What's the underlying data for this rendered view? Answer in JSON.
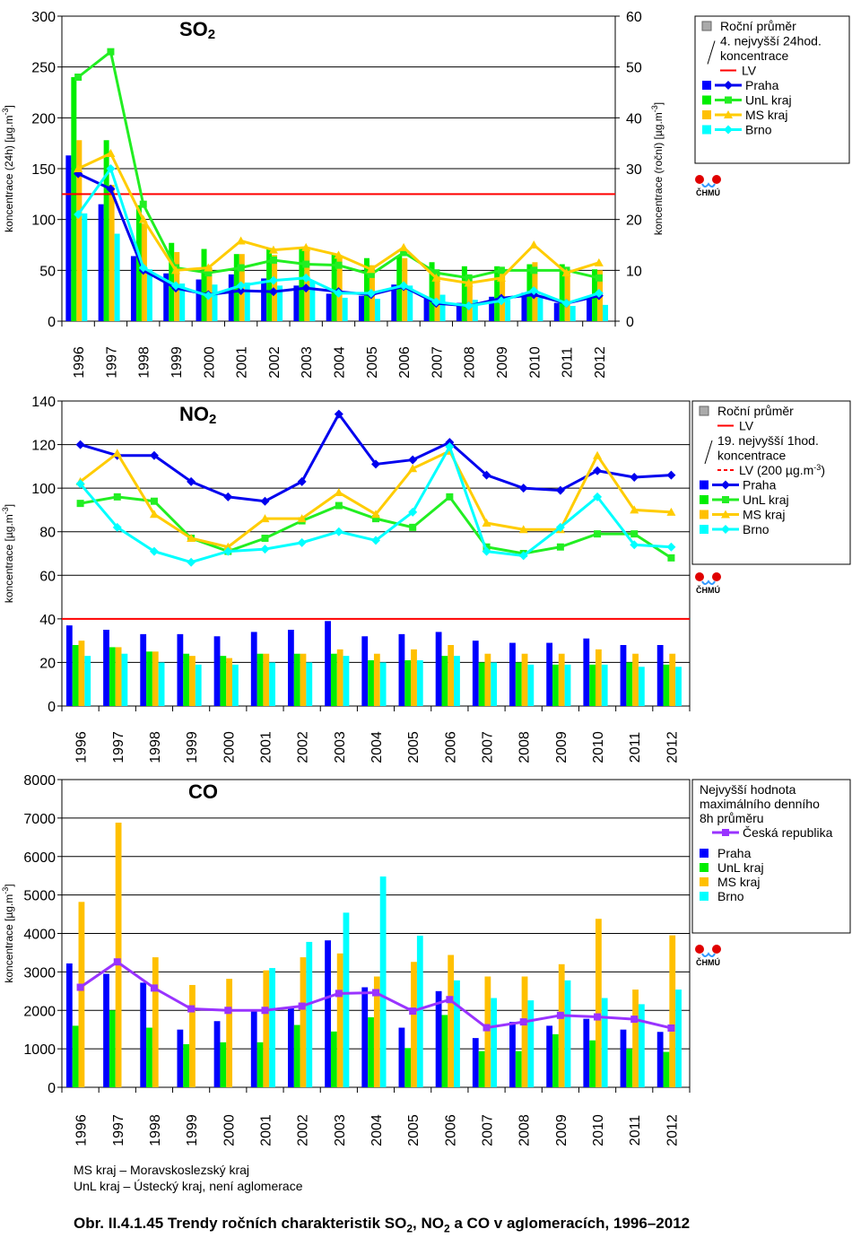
{
  "colors": {
    "Praha": "#0000ff",
    "UnL kraj": "#00ee00",
    "MS kraj": "#ffc000",
    "Brno": "#00ffff",
    "CR": "#9933ff",
    "LV": "#ff0000",
    "bar_line": {
      "Praha": "#0000cc",
      "UnL kraj": "#00cc00",
      "MS kraj": "#f2b700",
      "Brno": "#00e5ff"
    },
    "line": {
      "Praha": "#0000ee",
      "UnL kraj": "#22ee22",
      "MS kraj": "#ffcc00",
      "Brno": "#00ffff"
    }
  },
  "chart_data": [
    {
      "id": "so2",
      "type": "bar",
      "title": "SO",
      "title_sub": "2",
      "ylabel": "koncentrace (24h) [µg.m-3]",
      "y2label": "koncentrace (roční) [µg.m-3]",
      "ylim": [
        0,
        300
      ],
      "y2lim": [
        0,
        60
      ],
      "yticks": [
        "0",
        "50",
        "100",
        "150",
        "200",
        "250",
        "300"
      ],
      "y2ticks": [
        "0",
        "10",
        "20",
        "30",
        "40",
        "50",
        "60"
      ],
      "categories": [
        "1996",
        "1997",
        "1998",
        "1999",
        "2000",
        "2001",
        "2002",
        "2003",
        "2004",
        "2005",
        "2006",
        "2007",
        "2008",
        "2009",
        "2010",
        "2011",
        "2012"
      ],
      "bar_axis": "left",
      "bars": [
        {
          "name": "Praha",
          "values": [
            163,
            115,
            64,
            47,
            41,
            46,
            42,
            35,
            27,
            25,
            36,
            22,
            18,
            24,
            28,
            18,
            22
          ]
        },
        {
          "name": "UnL kraj",
          "values": [
            240,
            178,
            114,
            77,
            71,
            66,
            72,
            73,
            66,
            62,
            64,
            58,
            54,
            54,
            56,
            56,
            51
          ]
        },
        {
          "name": "MS kraj",
          "values": [
            178,
            134,
            96,
            68,
            53,
            66,
            65,
            72,
            62,
            55,
            62,
            47,
            40,
            48,
            58,
            50,
            50
          ]
        },
        {
          "name": "Brno",
          "values": [
            106,
            86,
            51,
            37,
            36,
            38,
            35,
            39,
            23,
            22,
            35,
            26,
            21,
            21,
            23,
            15,
            16
          ]
        }
      ],
      "line_axis": "right",
      "lines": [
        {
          "name": "Praha",
          "values": [
            29,
            26,
            10,
            6.5,
            5.2,
            6,
            5.8,
            6.5,
            5.8,
            5.2,
            6.8,
            3.5,
            3,
            4.5,
            5.2,
            3.5,
            5
          ]
        },
        {
          "name": "UnL kraj",
          "values": [
            48,
            53,
            23,
            10.5,
            9.5,
            10.5,
            12,
            11.2,
            11,
            9.2,
            13.5,
            9.5,
            8.5,
            10,
            10,
            10,
            8.5
          ]
        },
        {
          "name": "MS kraj",
          "values": [
            30,
            33,
            20,
            10,
            10.5,
            15.8,
            14,
            14.5,
            13,
            10.2,
            14.5,
            8.5,
            7.5,
            8.5,
            15,
            9.5,
            11.5
          ]
        },
        {
          "name": "Brno",
          "values": [
            21,
            30,
            10.5,
            7,
            5,
            7,
            8,
            8.5,
            5.5,
            5.5,
            7,
            3.8,
            3,
            4,
            6,
            3.5,
            5.5
          ]
        }
      ],
      "hlines": [
        {
          "name": "LV",
          "value": 125,
          "style": "solid"
        }
      ],
      "legend": {
        "items": [
          {
            "kind": "box",
            "color": "#aaaaaa",
            "label": "Roční průměr"
          },
          {
            "kind": "slash",
            "label": "4. nejvyšší 24hod."
          },
          {
            "kind": "none",
            "label": "koncentrace"
          },
          {
            "kind": "redline",
            "label": "LV"
          },
          {
            "kind": "series",
            "series": "Praha",
            "label": "Praha"
          },
          {
            "kind": "series",
            "series": "UnL kraj",
            "label": "UnL kraj"
          },
          {
            "kind": "series",
            "series": "MS kraj",
            "label": "MS kraj"
          },
          {
            "kind": "series",
            "series": "Brno",
            "label": "Brno"
          }
        ]
      }
    },
    {
      "id": "no2",
      "type": "bar",
      "title": "NO",
      "title_sub": "2",
      "ylabel": "koncentrace [µg.m-3]",
      "ylim": [
        0,
        140
      ],
      "yticks": [
        "0",
        "20",
        "40",
        "60",
        "80",
        "100",
        "120",
        "140"
      ],
      "categories": [
        "1996",
        "1997",
        "1998",
        "1999",
        "2000",
        "2001",
        "2002",
        "2003",
        "2004",
        "2005",
        "2006",
        "2007",
        "2008",
        "2009",
        "2010",
        "2011",
        "2012"
      ],
      "bar_axis": "left",
      "bars": [
        {
          "name": "Praha",
          "values": [
            37,
            35,
            33,
            33,
            32,
            34,
            35,
            39,
            32,
            33,
            34,
            30,
            29,
            29,
            31,
            28,
            28
          ]
        },
        {
          "name": "UnL kraj",
          "values": [
            28,
            27,
            25,
            24,
            23,
            24,
            24,
            24,
            21,
            21,
            23,
            20,
            20,
            19,
            19,
            20,
            19
          ]
        },
        {
          "name": "MS kraj",
          "values": [
            30,
            27,
            25,
            23,
            22,
            24,
            24,
            26,
            24,
            26,
            28,
            24,
            24,
            24,
            26,
            24,
            24
          ]
        },
        {
          "name": "Brno",
          "values": [
            23,
            24,
            20,
            19,
            19,
            20,
            20,
            23,
            20,
            21,
            23,
            20,
            19,
            19,
            19,
            18,
            18
          ]
        }
      ],
      "line_axis": "left",
      "lines": [
        {
          "name": "Praha",
          "values": [
            120,
            115,
            115,
            103,
            96,
            94,
            103,
            134,
            111,
            113,
            121,
            106,
            100,
            99,
            108,
            105,
            106
          ]
        },
        {
          "name": "UnL kraj",
          "values": [
            93,
            96,
            94,
            77,
            71,
            77,
            85,
            92,
            86,
            82,
            96,
            73,
            70,
            73,
            79,
            79,
            68
          ]
        },
        {
          "name": "MS kraj",
          "values": [
            103,
            116,
            88,
            77,
            73,
            86,
            86,
            98,
            88,
            109,
            117,
            84,
            81,
            81,
            115,
            90,
            89
          ]
        },
        {
          "name": "Brno",
          "values": [
            102,
            82,
            71,
            66,
            71,
            72,
            75,
            80,
            76,
            89,
            119,
            71,
            69,
            82,
            96,
            74,
            73
          ]
        }
      ],
      "hlines": [
        {
          "name": "LV",
          "value": 40,
          "style": "solid"
        }
      ],
      "legend": {
        "items": [
          {
            "kind": "box",
            "color": "#aaaaaa",
            "label": "Roční průměr"
          },
          {
            "kind": "redline",
            "label": "LV"
          },
          {
            "kind": "slash",
            "label": "19. nejvyšší 1hod."
          },
          {
            "kind": "none",
            "label": "koncentrace"
          },
          {
            "kind": "dashline",
            "label": "LV (200 µg.m-3)"
          },
          {
            "kind": "series",
            "series": "Praha",
            "label": "Praha"
          },
          {
            "kind": "series",
            "series": "UnL kraj",
            "label": "UnL kraj"
          },
          {
            "kind": "series",
            "series": "MS kraj",
            "label": "MS kraj"
          },
          {
            "kind": "series",
            "series": "Brno",
            "label": "Brno"
          }
        ]
      }
    },
    {
      "id": "co",
      "type": "bar",
      "title": "CO",
      "title_sub": "",
      "ylabel": "koncentrace [µg.m-3]",
      "ylim": [
        0,
        8000
      ],
      "yticks": [
        "0",
        "1000",
        "2000",
        "3000",
        "4000",
        "5000",
        "6000",
        "7000",
        "8000"
      ],
      "categories": [
        "1996",
        "1997",
        "1998",
        "1999",
        "2000",
        "2001",
        "2002",
        "2003",
        "2004",
        "2005",
        "2006",
        "2007",
        "2008",
        "2009",
        "2010",
        "2011",
        "2012"
      ],
      "bar_axis": "left",
      "bars": [
        {
          "name": "Praha",
          "values": [
            3220,
            2950,
            2720,
            1500,
            1720,
            2000,
            2080,
            3820,
            2600,
            1550,
            2500,
            1280,
            1700,
            1600,
            1780,
            1500,
            1440
          ]
        },
        {
          "name": "UnL kraj",
          "values": [
            1600,
            2000,
            1550,
            1120,
            1170,
            1170,
            1620,
            1450,
            1820,
            1020,
            1880,
            940,
            940,
            1380,
            1220,
            1000,
            920
          ]
        },
        {
          "name": "MS kraj",
          "values": [
            4820,
            6880,
            3380,
            2660,
            2820,
            3040,
            3380,
            3480,
            2880,
            3260,
            3440,
            2880,
            2880,
            3200,
            4380,
            2540,
            3950
          ]
        },
        {
          "name": "Brno",
          "values": [
            null,
            null,
            null,
            null,
            null,
            3100,
            3780,
            4540,
            5480,
            3940,
            2780,
            2320,
            2260,
            2780,
            2320,
            2160,
            2540
          ]
        }
      ],
      "line_axis": "left",
      "lines": [
        {
          "name": "CR",
          "values": [
            2600,
            3260,
            2580,
            2040,
            2000,
            2000,
            2110,
            2440,
            2460,
            1980,
            2280,
            1550,
            1700,
            1870,
            1830,
            1770,
            1540
          ]
        }
      ],
      "hlines": [],
      "legend": {
        "items": [
          {
            "kind": "none",
            "label": "Nejvyšší hodnota"
          },
          {
            "kind": "none",
            "label": "maximálního denního"
          },
          {
            "kind": "none",
            "label": "8h průměru"
          },
          {
            "kind": "series",
            "series": "CR",
            "label": "Česká republika"
          },
          {
            "kind": "bar",
            "series": "Praha",
            "label": "Praha"
          },
          {
            "kind": "bar",
            "series": "UnL kraj",
            "label": "UnL kraj"
          },
          {
            "kind": "bar",
            "series": "MS kraj",
            "label": "MS kraj"
          },
          {
            "kind": "bar",
            "series": "Brno",
            "label": "Brno"
          }
        ]
      }
    }
  ],
  "logo": {
    "text": "ČHMÚ"
  },
  "notes": [
    "MS kraj – Moravskoslezský kraj",
    "UnL kraj – Ústecký kraj, není aglomerace"
  ],
  "caption": {
    "prefix": "Obr. II.4.1.45  Trendy ročních charakteristik SO",
    "sub1": "2",
    ",": ", NO",
    "sub2": "2",
    "suffix": " a CO v aglomeracích, 1996–2012"
  }
}
